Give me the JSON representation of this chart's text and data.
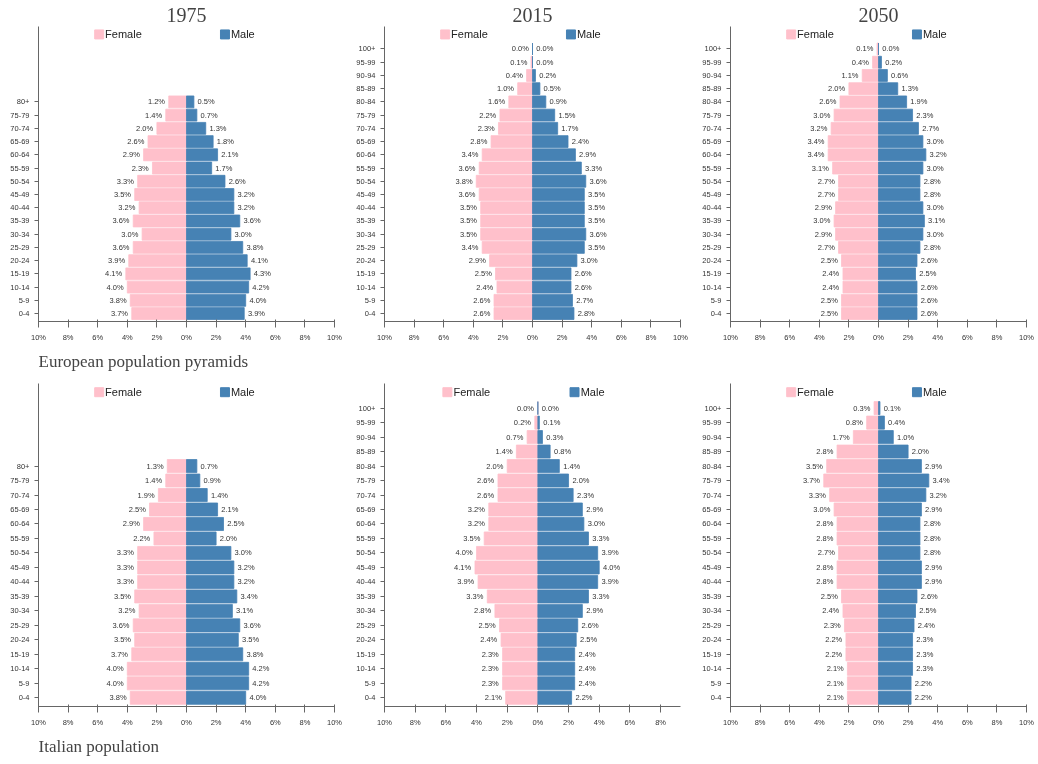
{
  "chart_data": [
    {
      "type": "bar",
      "orientation": "horizontal",
      "title": "1975",
      "legend": "top",
      "annotations": [
        "European population pyramids"
      ],
      "categories": [
        "80+",
        "75-79",
        "70-74",
        "65-69",
        "60-64",
        "55-59",
        "50-54",
        "45-49",
        "40-44",
        "35-39",
        "30-34",
        "25-29",
        "20-24",
        "15-19",
        "10-14",
        "5-9",
        "0-4"
      ],
      "xlim": [
        -10,
        10
      ],
      "xticks": [
        {
          "value": -10,
          "label": "10%"
        },
        {
          "value": -8,
          "label": "8%"
        },
        {
          "value": -6,
          "label": "6%"
        },
        {
          "value": -4,
          "label": "4%"
        },
        {
          "value": -2,
          "label": "2%"
        },
        {
          "value": 0,
          "label": "0%"
        },
        {
          "value": 2,
          "label": "2%"
        },
        {
          "value": 4,
          "label": "4%"
        },
        {
          "value": 6,
          "label": "6%"
        },
        {
          "value": 8,
          "label": "8%"
        },
        {
          "value": 10,
          "label": "10%"
        }
      ],
      "series": [
        {
          "name": "Female",
          "color": "#ffc0cb",
          "values": [
            1.2,
            1.4,
            2.0,
            2.6,
            2.9,
            2.3,
            3.3,
            3.5,
            3.2,
            3.6,
            3.0,
            3.6,
            3.9,
            4.1,
            4.0,
            3.8,
            3.7
          ],
          "base": [
            -1.2,
            -1.4,
            -2.0,
            -2.6,
            -2.9,
            -2.3,
            -3.3,
            -3.5,
            -3.2,
            -3.6,
            -3.0,
            -3.6,
            -3.9,
            -4.1,
            -4.0,
            -3.8,
            -3.7
          ],
          "value_labels": [
            "1.2%",
            "1.4%",
            "2.0%",
            "2.6%",
            "2.9%",
            "2.3%",
            "3.3%",
            "3.5%",
            "3.2%",
            "3.6%",
            "3.0%",
            "3.6%",
            "3.9%",
            "4.1%",
            "4.0%",
            "3.8%",
            "3.7%"
          ]
        },
        {
          "name": "Male",
          "color": "#4682b4",
          "values": [
            0.5,
            0.7,
            1.3,
            1.8,
            2.1,
            1.7,
            2.6,
            3.2,
            3.2,
            3.6,
            3.0,
            3.8,
            4.1,
            4.3,
            4.2,
            4.0,
            3.9
          ],
          "value_labels": [
            "0.5%",
            "0.7%",
            "1.3%",
            "1.8%",
            "2.1%",
            "1.7%",
            "2.6%",
            "3.2%",
            "3.2%",
            "3.6%",
            "3.0%",
            "3.8%",
            "4.1%",
            "4.3%",
            "4.2%",
            "4.0%",
            "3.9%"
          ]
        }
      ]
    },
    {
      "type": "bar",
      "orientation": "horizontal",
      "title": "2015",
      "legend": "top",
      "categories": [
        "100+",
        "95-99",
        "90-94",
        "85-89",
        "80-84",
        "75-79",
        "70-74",
        "65-69",
        "60-64",
        "55-59",
        "50-54",
        "45-49",
        "40-44",
        "35-39",
        "30-34",
        "25-29",
        "20-24",
        "15-19",
        "10-14",
        "5-9",
        "0-4"
      ],
      "xlim": [
        -10,
        10
      ],
      "xticks": [
        {
          "value": -10,
          "label": "10%"
        },
        {
          "value": -8,
          "label": "8%"
        },
        {
          "value": -6,
          "label": "6%"
        },
        {
          "value": -4,
          "label": "4%"
        },
        {
          "value": -2,
          "label": "2%"
        },
        {
          "value": 0,
          "label": "0%"
        },
        {
          "value": 2,
          "label": "2%"
        },
        {
          "value": 4,
          "label": "4%"
        },
        {
          "value": 6,
          "label": "6%"
        },
        {
          "value": 8,
          "label": "8%"
        },
        {
          "value": 10,
          "label": "10%"
        }
      ],
      "series": [
        {
          "name": "Female",
          "color": "#ffc0cb",
          "values": [
            0.0,
            0.1,
            0.4,
            1.0,
            1.6,
            2.2,
            2.3,
            2.8,
            3.4,
            3.6,
            3.8,
            3.6,
            3.5,
            3.5,
            3.5,
            3.4,
            2.9,
            2.5,
            2.4,
            2.6,
            2.6
          ],
          "base": [
            0,
            -0.1,
            -0.4,
            -1.0,
            -1.6,
            -2.2,
            -2.3,
            -2.8,
            -3.4,
            -3.6,
            -3.8,
            -3.6,
            -3.5,
            -3.5,
            -3.5,
            -3.4,
            -2.9,
            -2.5,
            -2.4,
            -2.6,
            -2.6
          ],
          "value_labels": [
            "0.0%",
            "0.1%",
            "0.4%",
            "1.0%",
            "1.6%",
            "2.2%",
            "2.3%",
            "2.8%",
            "3.4%",
            "3.6%",
            "3.8%",
            "3.6%",
            "3.5%",
            "3.5%",
            "3.5%",
            "3.4%",
            "2.9%",
            "2.5%",
            "2.4%",
            "2.6%",
            "2.6%"
          ]
        },
        {
          "name": "Male",
          "color": "#4682b4",
          "values": [
            0.0,
            0.0,
            0.2,
            0.5,
            0.9,
            1.5,
            1.7,
            2.4,
            2.9,
            3.3,
            3.6,
            3.5,
            3.5,
            3.5,
            3.6,
            3.5,
            3.0,
            2.6,
            2.6,
            2.7,
            2.8
          ],
          "value_labels": [
            "0.0%",
            "0.0%",
            "0.2%",
            "0.5%",
            "0.9%",
            "1.5%",
            "1.7%",
            "2.4%",
            "2.9%",
            "3.3%",
            "3.6%",
            "3.5%",
            "3.5%",
            "3.5%",
            "3.6%",
            "3.5%",
            "3.0%",
            "2.6%",
            "2.6%",
            "2.7%",
            "2.8%"
          ]
        }
      ]
    },
    {
      "type": "bar",
      "orientation": "horizontal",
      "title": "2050",
      "legend": "top",
      "categories": [
        "100+",
        "95-99",
        "90-94",
        "85-89",
        "80-84",
        "75-79",
        "70-74",
        "65-69",
        "60-64",
        "55-59",
        "50-54",
        "45-49",
        "40-44",
        "35-39",
        "30-34",
        "25-29",
        "20-24",
        "15-19",
        "10-14",
        "5-9",
        "0-4"
      ],
      "xlim": [
        -10,
        10
      ],
      "xticks": [
        {
          "value": -10,
          "label": "10%"
        },
        {
          "value": -8,
          "label": "8%"
        },
        {
          "value": -6,
          "label": "6%"
        },
        {
          "value": -4,
          "label": "4%"
        },
        {
          "value": -2,
          "label": "2%"
        },
        {
          "value": 0,
          "label": "0%"
        },
        {
          "value": 2,
          "label": "2%"
        },
        {
          "value": 4,
          "label": "4%"
        },
        {
          "value": 6,
          "label": "6%"
        },
        {
          "value": 8,
          "label": "8%"
        },
        {
          "value": 10,
          "label": "10%"
        }
      ],
      "series": [
        {
          "name": "Female",
          "color": "#ffc0cb",
          "values": [
            0.1,
            0.4,
            1.1,
            2.0,
            2.6,
            3.0,
            3.2,
            3.4,
            3.4,
            3.1,
            2.7,
            2.7,
            2.9,
            3.0,
            2.9,
            2.7,
            2.5,
            2.4,
            2.4,
            2.5,
            2.5
          ],
          "base": [
            -0.1,
            -0.4,
            -1.1,
            -2.0,
            -2.6,
            -3.0,
            -3.2,
            -3.4,
            -3.4,
            -3.1,
            -2.7,
            -2.7,
            -2.9,
            -3.0,
            -2.9,
            -2.7,
            -2.5,
            -2.4,
            -2.4,
            -2.5,
            -2.5
          ],
          "value_labels": [
            "0.1%",
            "0.4%",
            "1.1%",
            "2.0%",
            "2.6%",
            "3.0%",
            "3.2%",
            "3.4%",
            "3.4%",
            "3.1%",
            "2.7%",
            "2.7%",
            "2.9%",
            "3.0%",
            "2.9%",
            "2.7%",
            "2.5%",
            "2.4%",
            "2.4%",
            "2.5%",
            "2.5%"
          ]
        },
        {
          "name": "Male",
          "color": "#4682b4",
          "values": [
            0.0,
            0.2,
            0.6,
            1.3,
            1.9,
            2.3,
            2.7,
            3.0,
            3.2,
            3.0,
            2.8,
            2.8,
            3.0,
            3.1,
            3.0,
            2.8,
            2.6,
            2.5,
            2.6,
            2.6,
            2.6
          ],
          "value_labels": [
            "0.0%",
            "0.2%",
            "0.6%",
            "1.3%",
            "1.9%",
            "2.3%",
            "2.7%",
            "3.0%",
            "3.2%",
            "3.0%",
            "2.8%",
            "2.8%",
            "3.0%",
            "3.1%",
            "3.0%",
            "2.8%",
            "2.6%",
            "2.5%",
            "2.6%",
            "2.6%",
            "2.6%"
          ]
        }
      ]
    },
    {
      "type": "bar",
      "orientation": "horizontal",
      "annotations": [
        "Italian population"
      ],
      "legend": "top",
      "categories": [
        "80+",
        "75-79",
        "70-74",
        "65-69",
        "60-64",
        "55-59",
        "50-54",
        "45-49",
        "40-44",
        "35-39",
        "30-34",
        "25-29",
        "20-24",
        "15-19",
        "10-14",
        "5-9",
        "0-4"
      ],
      "xlim": [
        -10,
        10
      ],
      "xticks": [
        {
          "value": -10,
          "label": "10%"
        },
        {
          "value": -8,
          "label": "8%"
        },
        {
          "value": -6,
          "label": "6%"
        },
        {
          "value": -4,
          "label": "4%"
        },
        {
          "value": -2,
          "label": "2%"
        },
        {
          "value": 0,
          "label": "0%"
        },
        {
          "value": 2,
          "label": "2%"
        },
        {
          "value": 4,
          "label": "4%"
        },
        {
          "value": 6,
          "label": "6%"
        },
        {
          "value": 8,
          "label": "8%"
        },
        {
          "value": 10,
          "label": "10%"
        }
      ],
      "series": [
        {
          "name": "Female",
          "color": "#ffc0cb",
          "values": [
            1.3,
            1.4,
            1.9,
            2.5,
            2.9,
            2.2,
            3.3,
            3.3,
            3.3,
            3.5,
            3.2,
            3.6,
            3.5,
            3.7,
            4.0,
            4.0,
            3.8
          ],
          "base": [
            -1.3,
            -1.4,
            -1.9,
            -2.5,
            -2.9,
            -2.2,
            -3.3,
            -3.3,
            -3.3,
            -3.5,
            -3.2,
            -3.6,
            -3.5,
            -3.7,
            -4.0,
            -4.0,
            -3.8
          ],
          "value_labels": [
            "1.3%",
            "1.4%",
            "1.9%",
            "2.5%",
            "2.9%",
            "2.2%",
            "3.3%",
            "3.3%",
            "3.3%",
            "3.5%",
            "3.2%",
            "3.6%",
            "3.5%",
            "3.7%",
            "4.0%",
            "4.0%",
            "3.8%"
          ]
        },
        {
          "name": "Male",
          "color": "#4682b4",
          "values": [
            0.7,
            0.9,
            1.4,
            2.1,
            2.5,
            2.0,
            3.0,
            3.2,
            3.2,
            3.4,
            3.1,
            3.6,
            3.5,
            3.8,
            4.2,
            4.2,
            4.0
          ],
          "value_labels": [
            "0.7%",
            "0.9%",
            "1.4%",
            "2.1%",
            "2.5%",
            "2.0%",
            "3.0%",
            "3.2%",
            "3.2%",
            "3.4%",
            "3.1%",
            "3.6%",
            "3.5%",
            "3.8%",
            "4.2%",
            "4.2%",
            "4.0%"
          ]
        }
      ]
    },
    {
      "type": "bar",
      "orientation": "horizontal",
      "categories": [
        "100+",
        "95-99",
        "90-94",
        "85-89",
        "80-84",
        "75-79",
        "70-74",
        "65-69",
        "60-64",
        "55-59",
        "50-54",
        "45-49",
        "40-44",
        "35-39",
        "30-34",
        "25-29",
        "20-24",
        "15-19",
        "10-14",
        "5-9",
        "0-4"
      ],
      "xlim": [
        -10,
        9.3
      ],
      "legend": "top",
      "xticks": [
        {
          "value": -10,
          "label": "10%"
        },
        {
          "value": -8,
          "label": "8%"
        },
        {
          "value": -6,
          "label": "6%"
        },
        {
          "value": -4,
          "label": "4%"
        },
        {
          "value": -2,
          "label": "2%"
        },
        {
          "value": 0,
          "label": "0%"
        },
        {
          "value": 2,
          "label": "2%"
        },
        {
          "value": 4,
          "label": "4%"
        },
        {
          "value": 6,
          "label": "6%"
        },
        {
          "value": 8,
          "label": "8%"
        }
      ],
      "series": [
        {
          "name": "Female",
          "color": "#ffc0cb",
          "values": [
            0.0,
            0.2,
            0.7,
            1.4,
            2.0,
            2.6,
            2.6,
            3.2,
            3.2,
            3.5,
            4.0,
            4.1,
            3.9,
            3.3,
            2.8,
            2.5,
            2.4,
            2.3,
            2.3,
            2.3,
            2.1
          ],
          "base": [
            0,
            -0.2,
            -0.7,
            -1.4,
            -2.0,
            -2.6,
            -2.6,
            -3.2,
            -3.2,
            -3.5,
            -4.0,
            -4.1,
            -3.9,
            -3.3,
            -2.8,
            -2.5,
            -2.4,
            -2.3,
            -2.3,
            -2.3,
            -2.1
          ],
          "value_labels": [
            "0.0%",
            "0.2%",
            "0.7%",
            "1.4%",
            "2.0%",
            "2.6%",
            "2.6%",
            "3.2%",
            "3.2%",
            "3.5%",
            "4.0%",
            "4.1%",
            "3.9%",
            "3.3%",
            "2.8%",
            "2.5%",
            "2.4%",
            "2.3%",
            "2.3%",
            "2.3%",
            "2.1%"
          ]
        },
        {
          "name": "Male",
          "color": "#4682b4",
          "values": [
            0.0,
            0.1,
            0.3,
            0.8,
            1.4,
            2.0,
            2.3,
            2.9,
            3.0,
            3.3,
            3.9,
            4.0,
            3.9,
            3.3,
            2.9,
            2.6,
            2.5,
            2.4,
            2.4,
            2.4,
            2.2
          ],
          "value_labels": [
            "0.0%",
            "0.1%",
            "0.3%",
            "0.8%",
            "1.4%",
            "2.0%",
            "2.3%",
            "2.9%",
            "3.0%",
            "3.3%",
            "3.9%",
            "4.0%",
            "3.9%",
            "3.3%",
            "2.9%",
            "2.6%",
            "2.5%",
            "2.4%",
            "2.4%",
            "2.4%",
            "2.2%"
          ]
        }
      ]
    },
    {
      "type": "bar",
      "orientation": "horizontal",
      "categories": [
        "100+",
        "95-99",
        "90-94",
        "85-89",
        "80-84",
        "75-79",
        "70-74",
        "65-69",
        "60-64",
        "55-59",
        "50-54",
        "45-49",
        "40-44",
        "35-39",
        "30-34",
        "25-29",
        "20-24",
        "15-19",
        "10-14",
        "5-9",
        "0-4"
      ],
      "xlim": [
        -10,
        10
      ],
      "xticks": [
        {
          "value": -10,
          "label": "10%"
        },
        {
          "value": -8,
          "label": "8%"
        },
        {
          "value": -6,
          "label": "6%"
        },
        {
          "value": -4,
          "label": "4%"
        },
        {
          "value": -2,
          "label": "2%"
        },
        {
          "value": 0,
          "label": "0%"
        },
        {
          "value": 2,
          "label": "2%"
        },
        {
          "value": 4,
          "label": "4%"
        },
        {
          "value": 6,
          "label": "6%"
        },
        {
          "value": 8,
          "label": "8%"
        },
        {
          "value": 10,
          "label": "10%"
        }
      ],
      "series": [
        {
          "name": "Female",
          "color": "#ffc0cb",
          "values": [
            0.3,
            0.8,
            1.7,
            2.8,
            3.5,
            3.7,
            3.3,
            3.0,
            2.8,
            2.8,
            2.7,
            2.8,
            2.8,
            2.5,
            2.4,
            2.3,
            2.2,
            2.2,
            2.1,
            2.1,
            2.1
          ],
          "base": [
            -0.3,
            -0.8,
            -1.7,
            -2.8,
            -3.5,
            -3.7,
            -3.3,
            -3.0,
            -2.8,
            -2.8,
            -2.7,
            -2.8,
            -2.8,
            -2.5,
            -2.4,
            -2.3,
            -2.2,
            -2.2,
            -2.1,
            -2.1,
            -2.1
          ],
          "value_labels": [
            "0.3%",
            "0.8%",
            "1.7%",
            "2.8%",
            "3.5%",
            "3.7%",
            "3.3%",
            "3.0%",
            "2.8%",
            "2.8%",
            "2.7%",
            "2.8%",
            "2.8%",
            "2.5%",
            "2.4%",
            "2.3%",
            "2.2%",
            "2.2%",
            "2.1%",
            "2.1%",
            "2.1%"
          ]
        },
        {
          "name": "Male",
          "color": "#4682b4",
          "values": [
            0.1,
            0.4,
            1.0,
            2.0,
            2.9,
            3.4,
            3.2,
            2.9,
            2.8,
            2.8,
            2.8,
            2.9,
            2.9,
            2.6,
            2.5,
            2.4,
            2.3,
            2.3,
            2.3,
            2.2,
            2.2
          ],
          "value_labels": [
            "0.1%",
            "0.4%",
            "1.0%",
            "2.0%",
            "2.9%",
            "3.4%",
            "3.2%",
            "2.9%",
            "2.8%",
            "2.8%",
            "2.8%",
            "2.9%",
            "2.9%",
            "2.6%",
            "2.5%",
            "2.4%",
            "2.3%",
            "2.3%",
            "2.3%",
            "2.2%",
            "2.2%"
          ]
        }
      ],
      "legend": "top"
    }
  ]
}
